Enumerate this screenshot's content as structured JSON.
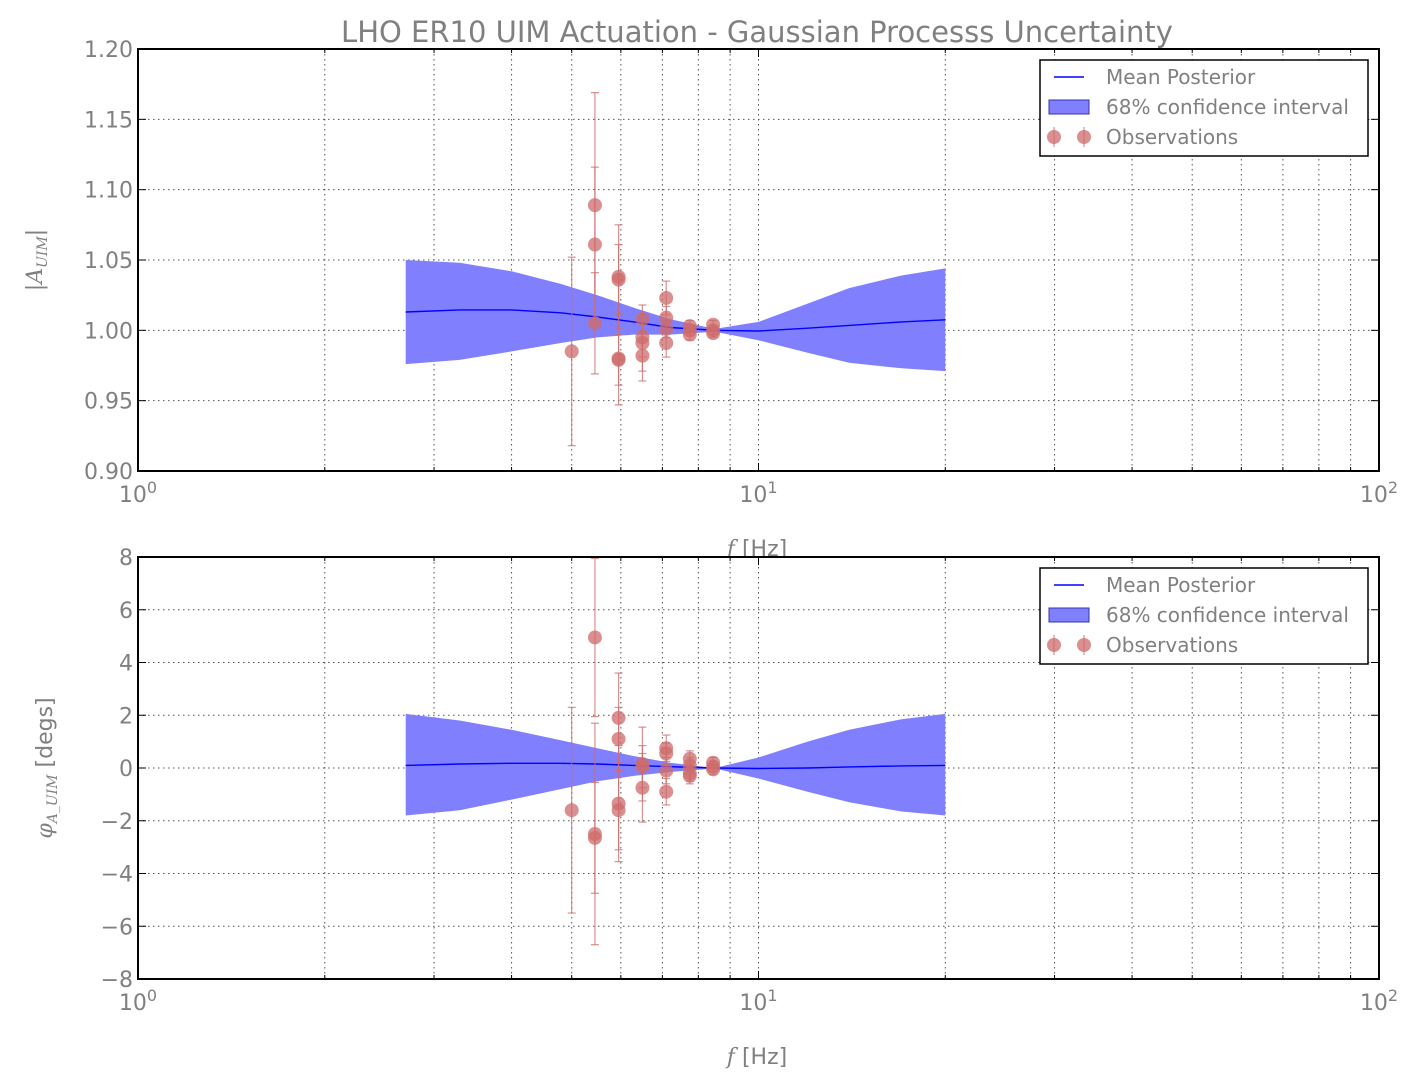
{
  "chart_data": {
    "title": "LHO ER10 UIM Actuation - Gaussian Processs Uncertainty",
    "legend_placement": "top-right",
    "legend": {
      "mean": "Mean Posterior",
      "band": "68% confidence interval",
      "obs": "Observations"
    },
    "colors": {
      "mean": "#0000ff",
      "band": "#8080ff",
      "obs": "#cd6b6b",
      "text": "#808080"
    },
    "x_scale": "log",
    "grid": true,
    "panels": [
      {
        "type": "line",
        "ylabel_parts": {
          "symbol": "|A",
          "subscript": "UIM",
          "end": "|"
        },
        "xlabel_parts": {
          "symbol": "f",
          "unit": " [Hz]"
        },
        "xlim": [
          1,
          100
        ],
        "ylim": [
          0.9,
          1.2
        ],
        "yticks": [
          "0.90",
          "0.95",
          "1.00",
          "1.05",
          "1.10",
          "1.15",
          "1.20"
        ],
        "xticks": [
          {
            "base": "10",
            "exp": "0",
            "value": 1
          },
          {
            "base": "10",
            "exp": "1",
            "value": 10
          },
          {
            "base": "10",
            "exp": "2",
            "value": 100
          }
        ],
        "mean": {
          "x": [
            2.7,
            3.3,
            4,
            4.8,
            5.5,
            6.3,
            7.2,
            8.5,
            10,
            12,
            14,
            17,
            20
          ],
          "y": [
            1.013,
            1.0145,
            1.0145,
            1.0125,
            1.0095,
            1.006,
            1.002,
            1.0,
            0.9995,
            1.0015,
            1.0035,
            1.006,
            1.0075
          ]
        },
        "band": {
          "x": [
            2.7,
            3.3,
            4,
            4.8,
            5.5,
            6.3,
            7.2,
            8.5,
            10,
            12,
            14,
            17,
            20
          ],
          "upper": [
            1.05,
            1.048,
            1.042,
            1.033,
            1.025,
            1.016,
            1.008,
            1.001,
            1.006,
            1.019,
            1.03,
            1.039,
            1.044
          ],
          "lower": [
            0.976,
            0.979,
            0.985,
            0.991,
            0.995,
            0.997,
            0.997,
            0.999,
            0.993,
            0.984,
            0.977,
            0.973,
            0.971
          ]
        },
        "observations": [
          {
            "x": 5.0,
            "y": 0.985,
            "err": 0.067
          },
          {
            "x": 5.45,
            "y": 1.089,
            "err": 0.08
          },
          {
            "x": 5.45,
            "y": 1.061,
            "err": 0.055
          },
          {
            "x": 5.45,
            "y": 1.005,
            "err": 0.036
          },
          {
            "x": 5.95,
            "y": 1.038,
            "err": 0.037
          },
          {
            "x": 5.95,
            "y": 1.036,
            "err": 0.025
          },
          {
            "x": 5.95,
            "y": 0.98,
            "err": 0.033
          },
          {
            "x": 5.95,
            "y": 0.979,
            "err": 0.018
          },
          {
            "x": 6.5,
            "y": 1.008,
            "err": 0.01
          },
          {
            "x": 6.5,
            "y": 0.995,
            "err": 0.014
          },
          {
            "x": 6.5,
            "y": 0.991,
            "err": 0.02
          },
          {
            "x": 6.5,
            "y": 0.982,
            "err": 0.018
          },
          {
            "x": 7.1,
            "y": 1.023,
            "err": 0.012
          },
          {
            "x": 7.1,
            "y": 1.009,
            "err": 0.008
          },
          {
            "x": 7.1,
            "y": 1.001,
            "err": 0.006
          },
          {
            "x": 7.1,
            "y": 0.991,
            "err": 0.01
          },
          {
            "x": 7.75,
            "y": 1.003,
            "err": 0.004
          },
          {
            "x": 7.75,
            "y": 1.0,
            "err": 0.004
          },
          {
            "x": 7.75,
            "y": 0.997,
            "err": 0.004
          },
          {
            "x": 8.45,
            "y": 1.004,
            "err": 0.003
          },
          {
            "x": 8.45,
            "y": 1.0,
            "err": 0.003
          },
          {
            "x": 8.45,
            "y": 0.998,
            "err": 0.003
          }
        ]
      },
      {
        "type": "line",
        "ylabel_parts": {
          "symbol": "φ",
          "subscript": "A_UIM",
          "end": " [degs]"
        },
        "xlabel_parts": {
          "symbol": "f",
          "unit": " [Hz]"
        },
        "xlim": [
          1,
          100
        ],
        "ylim": [
          -8,
          8
        ],
        "yticks": [
          "−8",
          "−6",
          "−4",
          "−2",
          "0",
          "2",
          "4",
          "6",
          "8"
        ],
        "xticks": [
          {
            "base": "10",
            "exp": "0",
            "value": 1
          },
          {
            "base": "10",
            "exp": "1",
            "value": 10
          },
          {
            "base": "10",
            "exp": "2",
            "value": 100
          }
        ],
        "mean": {
          "x": [
            2.7,
            3.3,
            4,
            4.8,
            5.5,
            6.3,
            7.2,
            8.5,
            10,
            12,
            14,
            17,
            20
          ],
          "y": [
            0.1,
            0.15,
            0.18,
            0.18,
            0.15,
            0.1,
            0.05,
            0.0,
            -0.02,
            0.0,
            0.04,
            0.08,
            0.1
          ]
        },
        "band": {
          "x": [
            2.7,
            3.3,
            4,
            4.8,
            5.5,
            6.3,
            7.2,
            8.5,
            10,
            12,
            14,
            17,
            20
          ],
          "upper": [
            2.05,
            1.8,
            1.45,
            1.05,
            0.75,
            0.45,
            0.2,
            0.0,
            0.4,
            1.0,
            1.45,
            1.85,
            2.05
          ],
          "lower": [
            -1.8,
            -1.6,
            -1.2,
            -0.8,
            -0.5,
            -0.3,
            -0.15,
            -0.02,
            -0.4,
            -0.9,
            -1.3,
            -1.65,
            -1.8
          ]
        },
        "observations": [
          {
            "x": 5.0,
            "y": -1.6,
            "err": 3.9
          },
          {
            "x": 5.45,
            "y": 4.95,
            "err": 3.0
          },
          {
            "x": 5.45,
            "y": -2.5,
            "err": 4.2
          },
          {
            "x": 5.45,
            "y": -2.65,
            "err": 2.1
          },
          {
            "x": 5.95,
            "y": 1.9,
            "err": 1.7
          },
          {
            "x": 5.95,
            "y": 1.1,
            "err": 1.2
          },
          {
            "x": 5.95,
            "y": -1.35,
            "err": 2.2
          },
          {
            "x": 5.95,
            "y": -1.6,
            "err": 1.5
          },
          {
            "x": 6.5,
            "y": 0.15,
            "err": 1.4
          },
          {
            "x": 6.5,
            "y": 0.05,
            "err": 0.8
          },
          {
            "x": 6.5,
            "y": -0.75,
            "err": 1.3
          },
          {
            "x": 7.1,
            "y": 0.75,
            "err": 0.5
          },
          {
            "x": 7.1,
            "y": 0.55,
            "err": 0.4
          },
          {
            "x": 7.1,
            "y": -0.1,
            "err": 0.5
          },
          {
            "x": 7.1,
            "y": -0.9,
            "err": 0.5
          },
          {
            "x": 7.75,
            "y": 0.35,
            "err": 0.3
          },
          {
            "x": 7.75,
            "y": 0.1,
            "err": 0.3
          },
          {
            "x": 7.75,
            "y": -0.2,
            "err": 0.3
          },
          {
            "x": 7.75,
            "y": -0.3,
            "err": 0.3
          },
          {
            "x": 8.45,
            "y": 0.2,
            "err": 0.2
          },
          {
            "x": 8.45,
            "y": 0.05,
            "err": 0.2
          },
          {
            "x": 8.45,
            "y": -0.05,
            "err": 0.2
          }
        ]
      }
    ]
  }
}
